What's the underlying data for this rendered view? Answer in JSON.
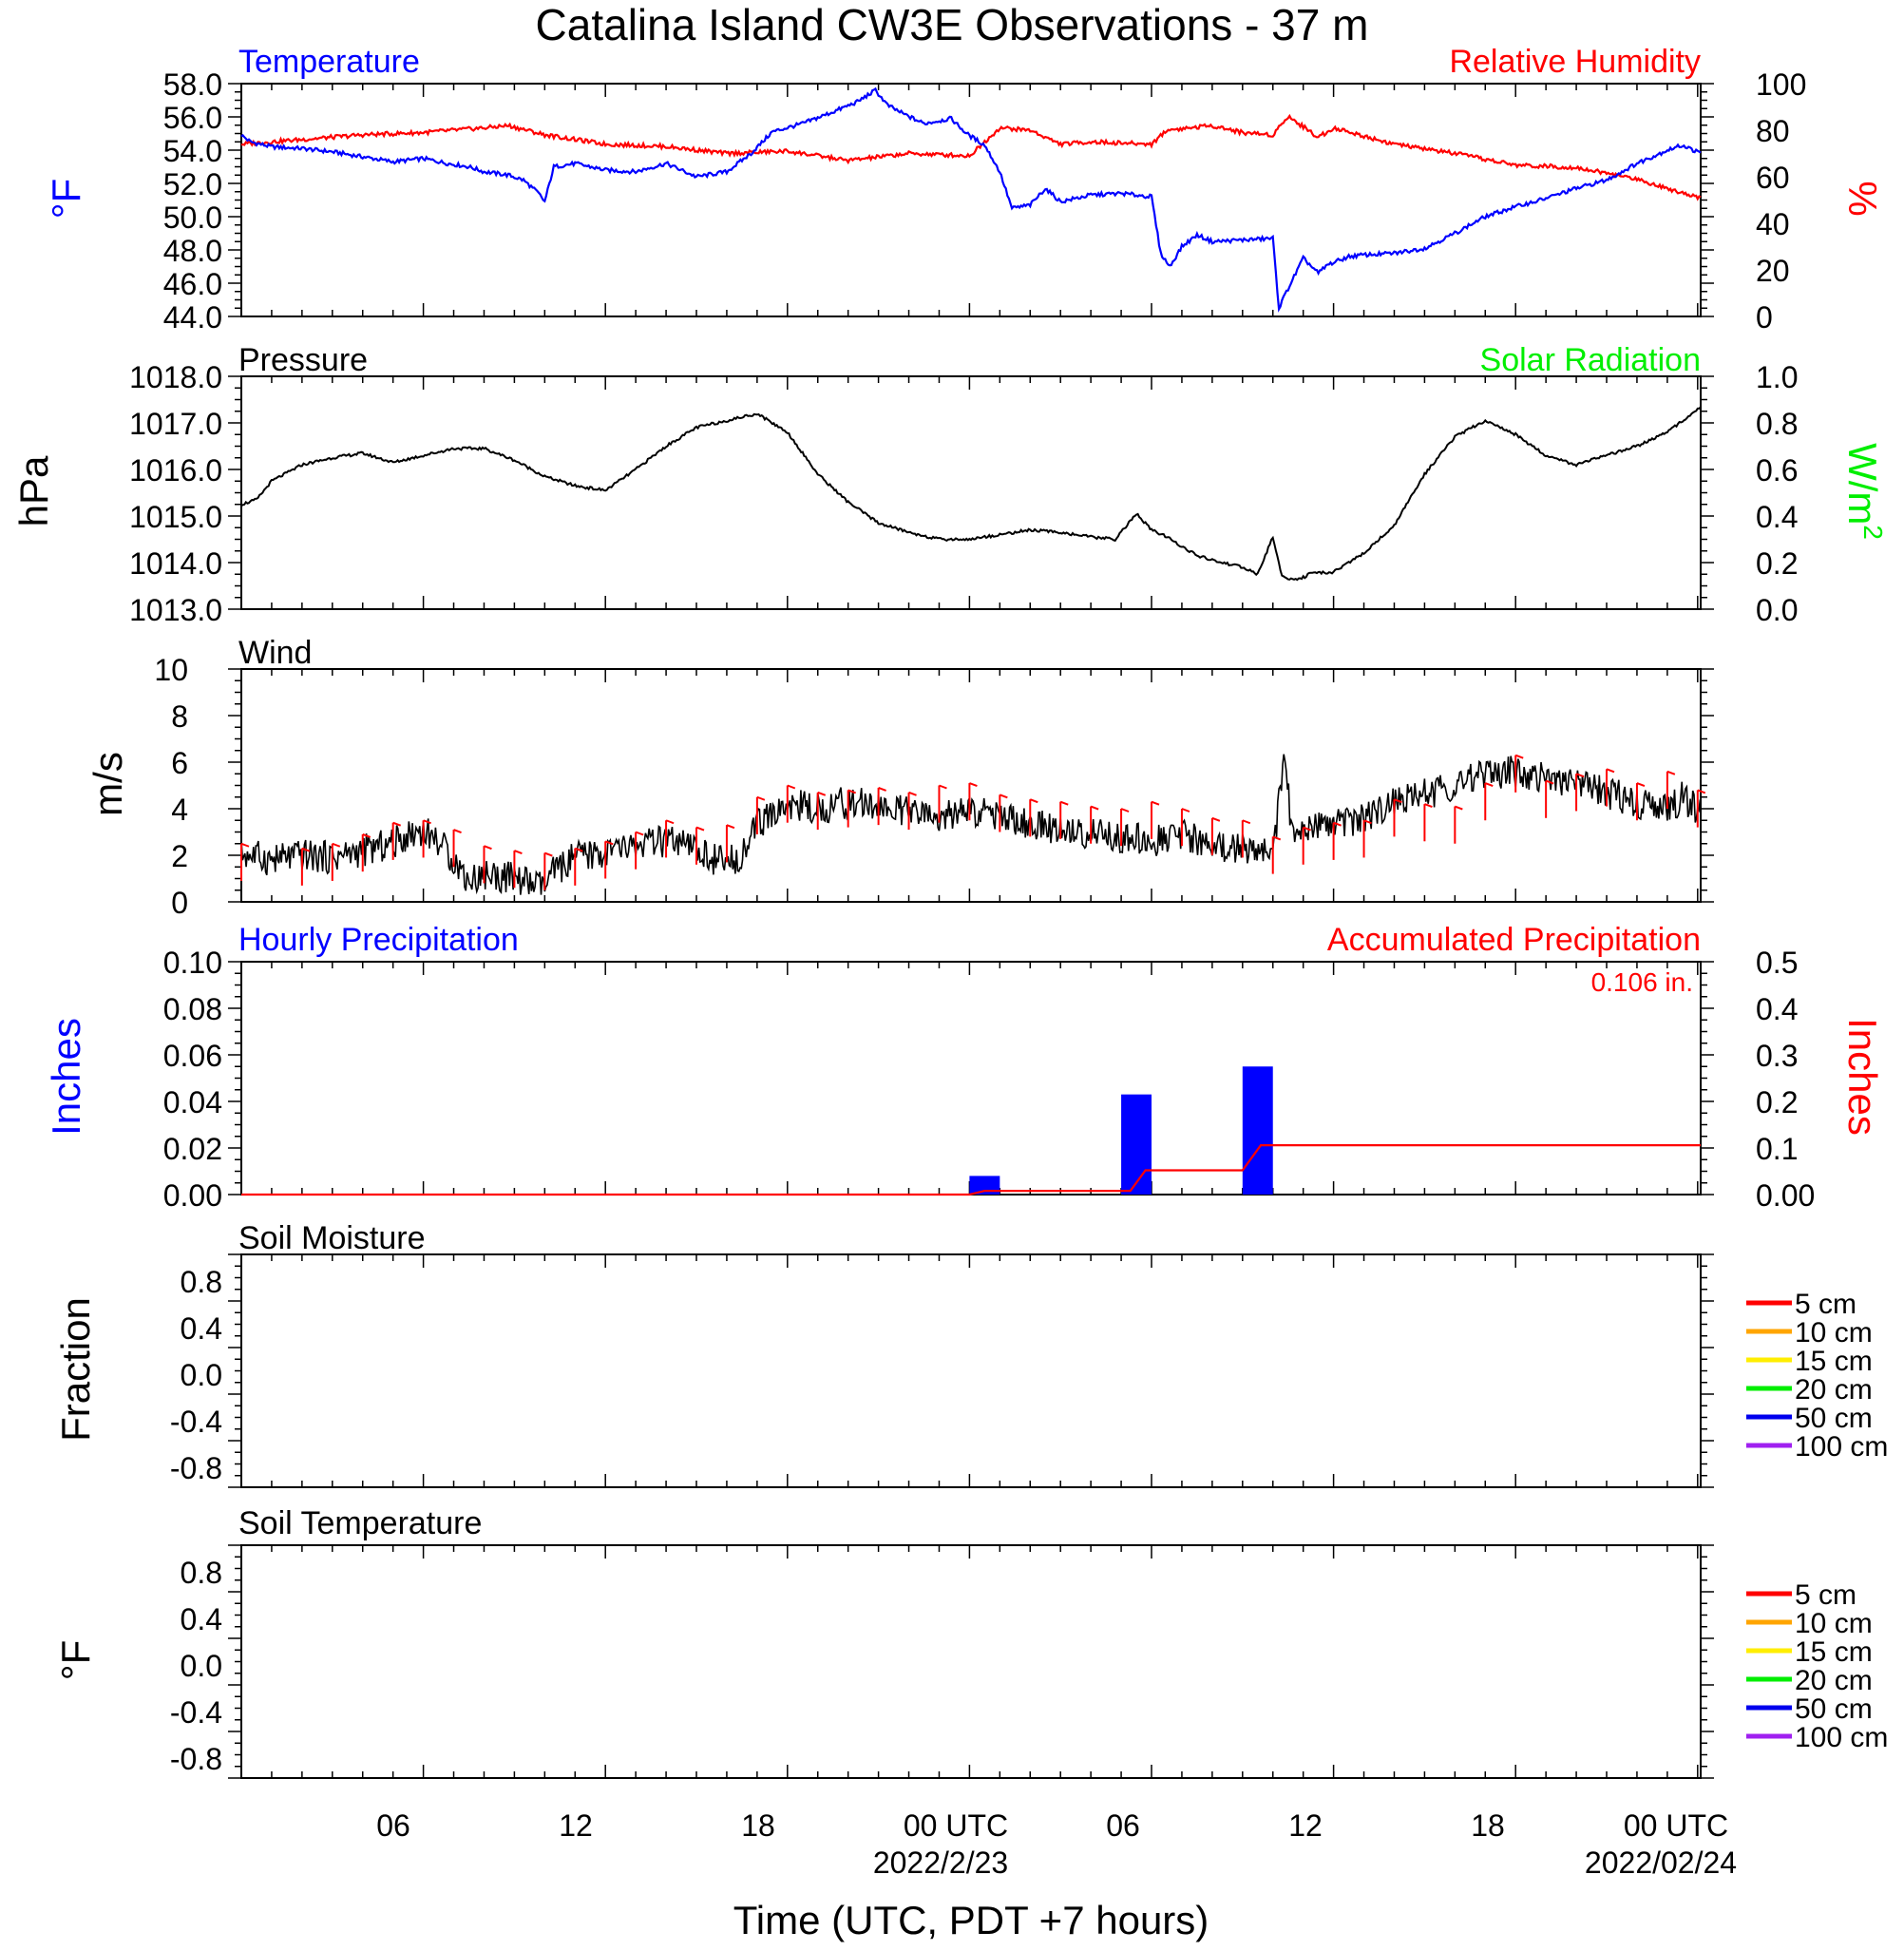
{
  "title": "Catalina Island CW3E Observations - 37 m",
  "xlabel": "Time (UTC, PDT +7 hours)",
  "time_ticks": [
    {
      "hour": 6,
      "label": "06"
    },
    {
      "hour": 12,
      "label": "12"
    },
    {
      "hour": 18,
      "label": "18"
    },
    {
      "hour": 24,
      "label": "00 UTC"
    },
    {
      "hour": 30,
      "label": "06"
    },
    {
      "hour": 36,
      "label": "12"
    },
    {
      "hour": 42,
      "label": "18"
    },
    {
      "hour": 48,
      "label": "00 UTC"
    }
  ],
  "date_labels": [
    {
      "hour": 24,
      "label": "2022/2/23"
    },
    {
      "hour": 48,
      "label": "2022/02/24"
    }
  ],
  "colors": {
    "temperature": "#0000ff",
    "humidity": "#ff0000",
    "pressure": "#000000",
    "solar": "#00ee00",
    "wind_speed": "#000000",
    "wind_barb": "#ff0000",
    "hourly_precip": "#0000ff",
    "accum_precip": "#ff0000"
  },
  "panels": {
    "temperature": {
      "title_left": "Temperature",
      "title_right": "Relative Humidity",
      "ylabel_left": "°F",
      "ylabel_right": "%",
      "left_ticks": [
        "44.0",
        "46.0",
        "48.0",
        "50.0",
        "52.0",
        "54.0",
        "56.0",
        "58.0"
      ],
      "right_ticks": [
        "0",
        "20",
        "40",
        "60",
        "80",
        "100"
      ]
    },
    "pressure": {
      "title_left": "Pressure",
      "title_right": "Solar Radiation",
      "ylabel_left": "hPa",
      "ylabel_right": "W/m",
      "ylabel_right_sup": "2",
      "left_ticks": [
        "1013.0",
        "1014.0",
        "1015.0",
        "1016.0",
        "1017.0",
        "1018.0"
      ],
      "right_ticks": [
        "0.0",
        "0.2",
        "0.4",
        "0.6",
        "0.8",
        "1.0"
      ]
    },
    "wind": {
      "title_left": "Wind",
      "ylabel_left": "m/s",
      "left_ticks": [
        "0",
        "2",
        "4",
        "6",
        "8",
        "10"
      ]
    },
    "precip": {
      "title_left": "Hourly Precipitation",
      "title_right": "Accumulated Precipitation",
      "total_label": "0.106 in.",
      "ylabel_left": "Inches",
      "ylabel_right": "Inches",
      "left_ticks": [
        "0.00",
        "0.02",
        "0.04",
        "0.06",
        "0.08",
        "0.10"
      ],
      "right_ticks": [
        "0.00",
        "0.1",
        "0.2",
        "0.3",
        "0.4",
        "0.5"
      ]
    },
    "soil_moisture": {
      "title_left": "Soil Moisture",
      "ylabel_left": "Fraction",
      "left_ticks": [
        "-0.8",
        "-0.4",
        "0.0",
        "0.4",
        "0.8"
      ]
    },
    "soil_temperature": {
      "title_left": "Soil Temperature",
      "ylabel_left": "°F",
      "left_ticks": [
        "-0.8",
        "-0.4",
        "0.0",
        "0.4",
        "0.8"
      ]
    }
  },
  "soil_legend": [
    {
      "label": "5 cm",
      "color": "#ff0000"
    },
    {
      "label": "10 cm",
      "color": "#ffa500"
    },
    {
      "label": "15 cm",
      "color": "#ffee00"
    },
    {
      "label": "20 cm",
      "color": "#00ee00"
    },
    {
      "label": "50 cm",
      "color": "#0000ee"
    },
    {
      "label": "100 cm",
      "color": "#a020f0"
    }
  ],
  "chart_data": [
    {
      "type": "line",
      "title": "Temperature",
      "x_unit": "hours since 2022-02-22 00 UTC",
      "ylim": [
        44,
        58
      ],
      "y2lim": [
        0,
        100
      ],
      "series": [
        {
          "name": "Temperature",
          "axis": "left",
          "x": [
            0,
            0.3,
            1,
            2,
            3,
            4,
            5,
            6,
            6.8,
            7.5,
            8,
            8.8,
            9.3,
            9.8,
            10,
            10.3,
            11,
            12,
            13,
            14,
            15,
            16,
            16.8,
            17.5,
            18.5,
            19.5,
            20.3,
            20.9,
            21.3,
            21.8,
            22.5,
            23.4,
            23.9,
            24.5,
            25,
            25.4,
            26,
            26.5,
            27,
            28,
            29,
            30,
            30.3,
            30.6,
            31,
            31.5,
            32,
            33,
            34,
            34.2,
            34.4,
            35,
            35.5,
            35.8,
            36.5,
            37,
            38,
            39,
            40,
            41,
            42,
            43,
            44,
            45,
            46,
            47,
            47.5,
            48.1
          ],
          "values": [
            54.9,
            54.5,
            54.2,
            54.1,
            53.9,
            53.6,
            53.3,
            53.5,
            53.2,
            53.0,
            52.7,
            52.5,
            52.2,
            51.4,
            50.9,
            53.0,
            53.2,
            52.8,
            52.7,
            53.2,
            52.4,
            52.7,
            53.8,
            55.1,
            55.6,
            56.3,
            56.9,
            57.6,
            56.7,
            56.2,
            55.6,
            55.9,
            55.0,
            54.3,
            52.7,
            50.5,
            50.7,
            51.7,
            50.9,
            51.3,
            51.4,
            51.2,
            47.8,
            47.0,
            48.2,
            48.9,
            48.5,
            48.6,
            48.7,
            44.5,
            45.3,
            47.5,
            46.6,
            47.1,
            47.6,
            47.7,
            47.8,
            48.1,
            49.0,
            50.0,
            50.6,
            51.1,
            51.7,
            52.2,
            53.2,
            54.0,
            54.3,
            53.8
          ]
        },
        {
          "name": "Relative Humidity",
          "axis": "right",
          "x": [
            0,
            2,
            4,
            6,
            8,
            8.8,
            10,
            12,
            14,
            16,
            18,
            20,
            22,
            24,
            25,
            26,
            27,
            28,
            30,
            30.5,
            32,
            33,
            34,
            34.5,
            35.5,
            36,
            38,
            40,
            42,
            44,
            46,
            47,
            48.1
          ],
          "values": [
            74,
            76,
            78,
            79,
            81,
            82,
            78,
            74,
            73,
            70,
            71,
            67,
            70,
            69,
            81,
            80,
            74,
            75,
            74,
            80,
            82,
            79,
            78,
            86,
            77,
            81,
            74,
            70,
            65,
            64,
            59,
            55,
            51
          ]
        }
      ]
    },
    {
      "type": "line",
      "title": "Pressure",
      "ylim": [
        1013,
        1018
      ],
      "y2lim": [
        0,
        1
      ],
      "series": [
        {
          "name": "Pressure",
          "x": [
            0,
            0.5,
            1,
            2,
            3,
            4,
            5,
            6,
            7,
            8,
            9,
            10,
            11,
            12,
            13,
            14,
            15,
            16,
            17,
            18,
            19,
            20,
            21,
            22,
            23,
            24,
            25,
            26,
            27,
            28,
            28.8,
            29.5,
            30,
            30.5,
            31,
            31.5,
            32,
            33,
            33.5,
            34,
            34.3,
            34.6,
            34.9,
            35.2,
            36,
            37,
            38,
            39,
            40,
            41,
            42,
            43,
            44,
            45,
            46,
            47,
            48.1
          ],
          "values": [
            1015.25,
            1015.35,
            1015.75,
            1016.1,
            1016.25,
            1016.35,
            1016.15,
            1016.3,
            1016.45,
            1016.45,
            1016.2,
            1015.85,
            1015.65,
            1015.55,
            1016.0,
            1016.5,
            1016.9,
            1017.05,
            1017.2,
            1016.8,
            1015.9,
            1015.3,
            1014.85,
            1014.65,
            1014.5,
            1014.5,
            1014.6,
            1014.7,
            1014.65,
            1014.55,
            1014.5,
            1015.05,
            1014.7,
            1014.55,
            1014.35,
            1014.15,
            1014.05,
            1013.9,
            1013.75,
            1014.55,
            1013.7,
            1013.65,
            1013.65,
            1013.75,
            1013.8,
            1014.2,
            1014.8,
            1015.9,
            1016.7,
            1017.05,
            1016.75,
            1016.3,
            1016.1,
            1016.3,
            1016.5,
            1016.8,
            1017.35
          ]
        }
      ]
    },
    {
      "type": "line",
      "title": "Wind",
      "ylim": [
        0,
        10
      ],
      "series": [
        {
          "name": "Wind",
          "x": [
            0,
            1,
            2,
            3,
            4,
            5,
            5.5,
            6,
            6.5,
            7,
            7.5,
            8,
            9,
            9.7,
            10,
            10.3,
            11,
            12,
            13,
            14,
            15,
            16,
            16.5,
            17,
            17.5,
            18,
            19,
            20,
            21,
            22,
            23,
            24,
            25,
            26,
            27,
            28,
            29,
            30,
            31,
            32,
            33,
            34,
            34.2,
            34.4,
            34.6,
            35,
            36,
            37,
            38,
            39,
            40,
            41,
            42,
            43,
            44,
            45,
            46,
            47,
            47.5,
            48.1
          ],
          "values": [
            2.1,
            1.8,
            2.0,
            1.9,
            2.2,
            2.5,
            2.9,
            3.1,
            2.6,
            1.8,
            0.9,
            1.2,
            1.0,
            0.7,
            0.6,
            1.3,
            1.9,
            2.1,
            2.4,
            2.6,
            2.2,
            1.6,
            2.1,
            3.3,
            3.7,
            4.2,
            4.0,
            4.3,
            4.1,
            3.8,
            3.6,
            3.9,
            3.7,
            3.3,
            3.1,
            2.9,
            2.8,
            2.6,
            2.9,
            2.4,
            2.3,
            2.2,
            4.3,
            6.5,
            3.1,
            3.0,
            3.3,
            3.6,
            4.2,
            4.6,
            5.1,
            5.4,
            5.6,
            5.3,
            5.0,
            4.7,
            4.3,
            3.9,
            4.5,
            3.9
          ]
        }
      ],
      "barbs": {
        "hours": [
          0,
          2,
          3,
          4,
          5,
          6,
          7,
          8,
          9,
          10,
          11,
          12,
          13,
          14,
          15,
          16,
          17,
          18,
          19,
          20,
          21,
          22,
          23,
          24,
          25,
          26,
          27,
          28,
          29,
          30,
          31,
          32,
          33,
          34,
          35,
          36,
          37,
          38,
          39,
          40,
          41,
          42,
          43,
          44,
          45,
          46,
          47,
          48
        ],
        "values": [
          2.5,
          2.3,
          2.5,
          2.9,
          3.4,
          3.5,
          3.1,
          2.4,
          2.2,
          2.1,
          2.3,
          2.6,
          3.0,
          3.5,
          3.2,
          3.3,
          4.5,
          5.0,
          4.7,
          4.8,
          4.9,
          4.7,
          5.0,
          5.1,
          4.6,
          4.4,
          4.3,
          4.1,
          4.0,
          4.3,
          4.0,
          3.6,
          3.5,
          2.8,
          3.2,
          3.4,
          3.5,
          4.4,
          4.2,
          4.1,
          5.1,
          6.3,
          5.2,
          5.5,
          5.7,
          5.1,
          5.6,
          4.8
        ]
      }
    },
    {
      "type": "bar",
      "title": "Hourly Precipitation",
      "ylim": [
        0,
        0.1
      ],
      "y2lim": [
        0,
        0.5
      ],
      "series": [
        {
          "name": "Hourly Precipitation",
          "axis": "left",
          "x": [
            24,
            29,
            33
          ],
          "values": [
            0.008,
            0.043,
            0.055
          ]
        },
        {
          "name": "Accumulated Precipitation",
          "axis": "right",
          "type": "line",
          "x": [
            0,
            24.0,
            24.5,
            29.3,
            29.8,
            33.0,
            33.6,
            48.1
          ],
          "values": [
            0,
            0,
            0.008,
            0.008,
            0.052,
            0.052,
            0.106,
            0.106
          ]
        }
      ]
    },
    {
      "type": "line",
      "title": "Soil Moisture",
      "ylim": [
        -1,
        1
      ],
      "series": []
    },
    {
      "type": "line",
      "title": "Soil Temperature",
      "ylim": [
        -1,
        1
      ],
      "series": []
    }
  ]
}
